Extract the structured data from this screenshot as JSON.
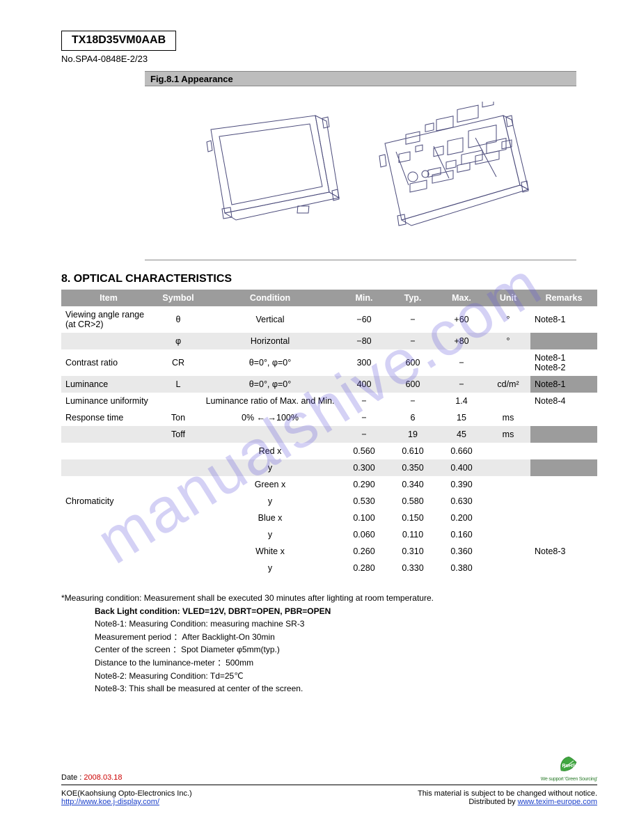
{
  "header": {
    "model": "TX18D35VM0AAB",
    "subtitle": "No.SPA4-0848E-2/23",
    "figure_label": "Fig.8.1 Appearance"
  },
  "section_title": "8. OPTICAL CHARACTERISTICS",
  "spec_table": {
    "columns": [
      "Item",
      "Symbol",
      "Condition",
      "Min.",
      "Typ.",
      "Max.",
      "Unit",
      "Remarks"
    ],
    "rows": [
      {
        "shade": false,
        "cells": [
          "Viewing angle range  (at CR>2)",
          "θ",
          "Vertical",
          "−60",
          "−",
          "+60",
          "°",
          "Note8-1"
        ]
      },
      {
        "shade": true,
        "cells": [
          "",
          "φ",
          "Horizontal",
          "−80",
          "−",
          "+80",
          "°",
          ""
        ]
      },
      {
        "shade": false,
        "cells": [
          "Contrast ratio",
          "CR",
          "θ=0°, φ=0°",
          "300",
          "600",
          "−",
          " ",
          "Note8-1  Note8-2"
        ]
      },
      {
        "shade": true,
        "cells": [
          "Luminance",
          "L",
          "θ=0°, φ=0°",
          "400",
          "600",
          "−",
          "cd/m²",
          "Note8-1"
        ]
      },
      {
        "shade": false,
        "cells": [
          "Luminance uniformity",
          " ",
          "Luminance ratio of Max. and Min.",
          "−",
          "−",
          "1.4",
          " ",
          "Note8-4"
        ]
      },
      {
        "shade": false,
        "cells": [
          "Response time",
          "Ton",
          "0% ← →100%",
          "−",
          "6",
          "15",
          "ms",
          " "
        ]
      },
      {
        "shade": true,
        "cells": [
          "",
          "Toff",
          "",
          "−",
          "19",
          "45",
          "ms",
          ""
        ]
      },
      {
        "shade": false,
        "cells": [
          "",
          " ",
          "Red      x",
          "0.560",
          "0.610",
          "0.660",
          " ",
          " "
        ]
      },
      {
        "shade": true,
        "cells": [
          "",
          " ",
          "              y",
          "0.300",
          "0.350",
          "0.400",
          " ",
          ""
        ]
      },
      {
        "shade": false,
        "cells": [
          "",
          " ",
          "Green   x",
          "0.290",
          "0.340",
          "0.390",
          " ",
          " "
        ]
      },
      {
        "shade": false,
        "cells": [
          "Chromaticity",
          " ",
          "              y",
          "0.530",
          "0.580",
          "0.630",
          " ",
          " "
        ]
      },
      {
        "shade": false,
        "cells": [
          "",
          " ",
          "Blue      x",
          "0.100",
          "0.150",
          "0.200",
          " ",
          " "
        ]
      },
      {
        "shade": false,
        "cells": [
          "",
          " ",
          "              y",
          "0.060",
          "0.110",
          "0.160",
          " ",
          " "
        ]
      },
      {
        "shade": false,
        "cells": [
          "",
          " ",
          "White    x",
          "0.260",
          "0.310",
          "0.360",
          " ",
          "Note8-3"
        ]
      },
      {
        "shade": false,
        "cells": [
          "",
          " ",
          "              y",
          "0.280",
          "0.330",
          "0.380",
          " ",
          " "
        ]
      }
    ]
  },
  "notes": {
    "lead": "*Measuring condition: Measurement shall be executed 30 minutes after lighting at room temperature.",
    "lines": [
      "Back Light condition: VLED=12V, DBRT=OPEN, PBR=OPEN",
      "Note8-1:  Measuring Condition: measuring machine SR-3",
      "                  Measurement period ：After Backlight-On 30min",
      "                  Center of the screen ：Spot Diameter φ5mm(typ.)",
      "                  Distance to the luminance-meter ：500mm",
      "Note8-2:  Measuring Condition: Td=25℃",
      "Note8-3:  This shall be measured at center of the screen."
    ]
  },
  "footer": {
    "rohs_caption": "We support 'Green Sourcing'",
    "date_label": "Date :",
    "date_value": "2008.03.18",
    "left_line1": "KOE(Kaohsiung Opto-Electronics Inc.)",
    "left_site": "http://www.koe.j-display.com/",
    "disclaimer": "This material is subject to be changed without notice.",
    "right_line1_prefix": "Distributed by ",
    "right_site": "www.texim-europe.com"
  },
  "style": {
    "bg": "#ffffff",
    "header_gray": "#9c9c9c",
    "row_shade": "#e9e9e9",
    "link_color": "#1a3fc9",
    "red": "#c00",
    "watermark_color": "rgba(100,90,220,0.28)"
  },
  "watermark": "manualshive.com"
}
